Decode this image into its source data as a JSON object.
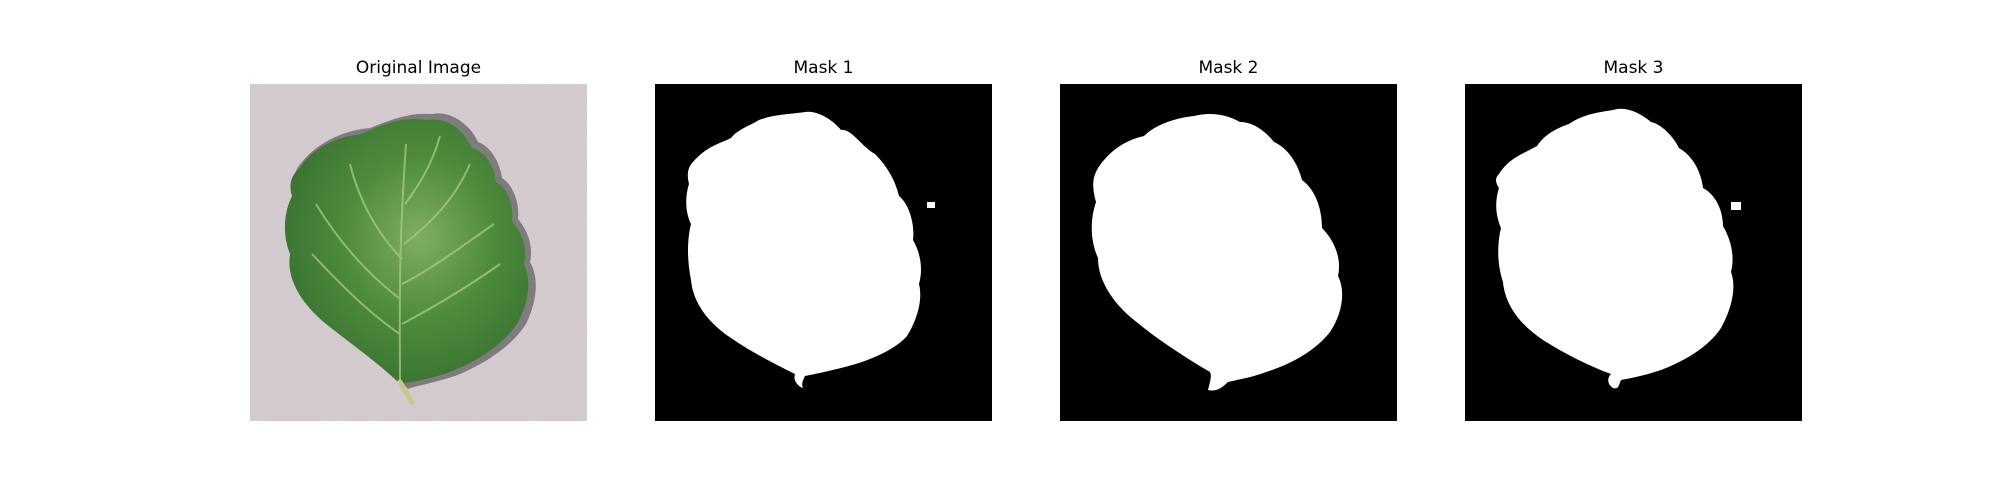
{
  "panels": [
    {
      "title": "Original Image",
      "kind": "photo"
    },
    {
      "title": "Mask 1",
      "kind": "mask"
    },
    {
      "title": "Mask 2",
      "kind": "mask"
    },
    {
      "title": "Mask 3",
      "kind": "mask"
    }
  ],
  "colors": {
    "background": "#d6cdd1",
    "leaf_dark": "#2f6a2a",
    "leaf_mid": "#4d8a3c",
    "leaf_light": "#7fae64",
    "mask_foreground": "#ffffff",
    "mask_background": "#000000"
  }
}
